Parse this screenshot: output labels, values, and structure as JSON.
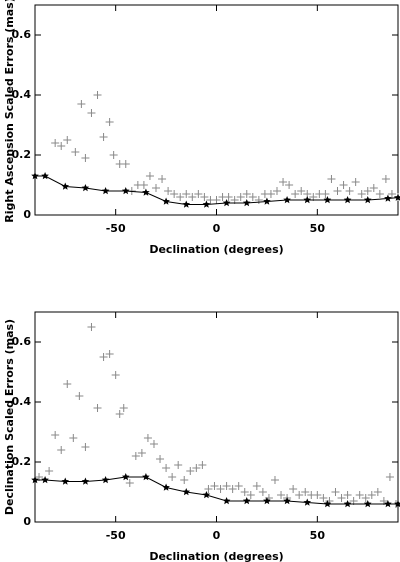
{
  "chart_data": [
    {
      "type": "scatter",
      "xlabel": "Declination (degrees)",
      "ylabel": "Right Ascension Scaled Errors (mas)",
      "xlim": [
        -90,
        90
      ],
      "xticks": [
        -50,
        0,
        50
      ],
      "ylim": [
        0,
        0.7
      ],
      "yticks": [
        0,
        0.2,
        0.4,
        0.6
      ],
      "series": [
        {
          "color": "#888888",
          "marker": "plus",
          "x": [
            -80,
            -77,
            -74,
            -70,
            -67,
            -65,
            -62,
            -59,
            -56,
            -53,
            -51,
            -48,
            -45,
            -42,
            -39,
            -36,
            -33,
            -30,
            -27,
            -24,
            -21,
            -18,
            -15,
            -12,
            -9,
            -6,
            -3,
            0,
            3,
            6,
            9,
            12,
            15,
            18,
            21,
            24,
            27,
            30,
            33,
            36,
            39,
            42,
            45,
            48,
            51,
            54,
            57,
            60,
            63,
            66,
            69,
            72,
            75,
            78,
            81,
            84,
            87,
            90
          ],
          "values": [
            0.24,
            0.23,
            0.25,
            0.21,
            0.37,
            0.19,
            0.34,
            0.4,
            0.26,
            0.31,
            0.2,
            0.17,
            0.17,
            0.08,
            0.1,
            0.1,
            0.13,
            0.09,
            0.12,
            0.08,
            0.07,
            0.06,
            0.07,
            0.06,
            0.07,
            0.06,
            0.05,
            0.05,
            0.06,
            0.06,
            0.05,
            0.06,
            0.07,
            0.06,
            0.05,
            0.07,
            0.07,
            0.08,
            0.11,
            0.1,
            0.07,
            0.08,
            0.07,
            0.06,
            0.07,
            0.07,
            0.12,
            0.08,
            0.1,
            0.08,
            0.11,
            0.07,
            0.08,
            0.09,
            0.07,
            0.12,
            0.07,
            0.06
          ]
        },
        {
          "color": "#000000",
          "marker": "star",
          "line": true,
          "x": [
            -90,
            -85,
            -75,
            -65,
            -55,
            -45,
            -35,
            -25,
            -15,
            -5,
            5,
            15,
            25,
            35,
            45,
            55,
            65,
            75,
            85,
            90
          ],
          "values": [
            0.13,
            0.13,
            0.095,
            0.09,
            0.08,
            0.08,
            0.075,
            0.045,
            0.035,
            0.035,
            0.04,
            0.04,
            0.045,
            0.05,
            0.05,
            0.05,
            0.05,
            0.05,
            0.055,
            0.058
          ]
        }
      ]
    },
    {
      "type": "scatter",
      "xlabel": "Declination (degrees)",
      "ylabel": "Declination Scaled Errors (mas)",
      "xlim": [
        -90,
        90
      ],
      "xticks": [
        -50,
        0,
        50
      ],
      "ylim": [
        0,
        0.7
      ],
      "yticks": [
        0,
        0.2,
        0.4,
        0.6
      ],
      "series": [
        {
          "color": "#888888",
          "marker": "plus",
          "x": [
            -88,
            -83,
            -80,
            -77,
            -74,
            -71,
            -68,
            -65,
            -62,
            -59,
            -56,
            -53,
            -50,
            -48,
            -46,
            -43,
            -40,
            -37,
            -34,
            -31,
            -28,
            -25,
            -22,
            -19,
            -16,
            -13,
            -10,
            -7,
            -4,
            -1,
            2,
            5,
            8,
            11,
            14,
            17,
            20,
            23,
            26,
            29,
            32,
            35,
            38,
            41,
            44,
            47,
            50,
            53,
            56,
            59,
            62,
            65,
            68,
            71,
            74,
            77,
            80,
            83,
            86,
            89
          ],
          "values": [
            0.15,
            0.17,
            0.29,
            0.24,
            0.46,
            0.28,
            0.42,
            0.25,
            0.65,
            0.38,
            0.55,
            0.56,
            0.49,
            0.36,
            0.38,
            0.13,
            0.22,
            0.23,
            0.28,
            0.26,
            0.21,
            0.18,
            0.15,
            0.19,
            0.14,
            0.17,
            0.18,
            0.19,
            0.11,
            0.12,
            0.11,
            0.12,
            0.11,
            0.12,
            0.1,
            0.09,
            0.12,
            0.1,
            0.08,
            0.14,
            0.09,
            0.08,
            0.11,
            0.09,
            0.1,
            0.09,
            0.09,
            0.08,
            0.07,
            0.1,
            0.08,
            0.09,
            0.07,
            0.09,
            0.08,
            0.09,
            0.1,
            0.07,
            0.15,
            0.06
          ]
        },
        {
          "color": "#000000",
          "marker": "star",
          "line": true,
          "x": [
            -90,
            -85,
            -75,
            -65,
            -55,
            -45,
            -35,
            -25,
            -15,
            -5,
            5,
            15,
            25,
            35,
            45,
            55,
            65,
            75,
            85,
            90
          ],
          "values": [
            0.14,
            0.14,
            0.135,
            0.135,
            0.14,
            0.15,
            0.15,
            0.115,
            0.1,
            0.09,
            0.07,
            0.07,
            0.07,
            0.07,
            0.065,
            0.06,
            0.06,
            0.06,
            0.06,
            0.06
          ]
        }
      ]
    }
  ]
}
